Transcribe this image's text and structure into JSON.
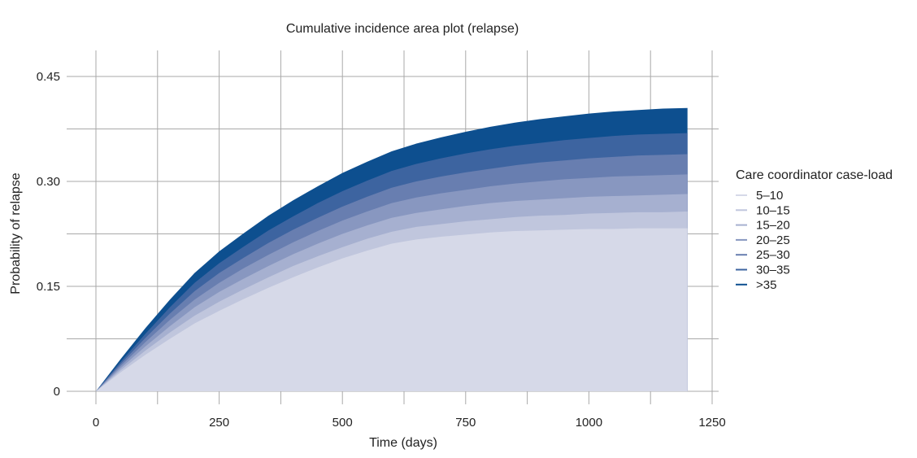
{
  "chart_data": {
    "type": "area",
    "title": "Cumulative incidence area plot (relapse)",
    "xlabel": "Time (days)",
    "ylabel": "Probability of relapse",
    "xlim": [
      0,
      1250
    ],
    "ylim": [
      0,
      0.45
    ],
    "x_ticks": [
      0,
      250,
      500,
      750,
      1000,
      1250
    ],
    "x_tick_labels": [
      "0",
      "250",
      "500",
      "750",
      "1000",
      "1250"
    ],
    "y_ticks": [
      0,
      0.15,
      0.3,
      0.45
    ],
    "y_tick_labels": [
      "0",
      "0.15",
      "0.30",
      "0.45"
    ],
    "grid": true,
    "legend": {
      "title": "Care coordinator case-load",
      "placement": "right"
    },
    "x": [
      0,
      50,
      100,
      150,
      200,
      250,
      300,
      350,
      400,
      450,
      500,
      550,
      600,
      650,
      700,
      750,
      800,
      850,
      900,
      950,
      1000,
      1050,
      1100,
      1150,
      1200
    ],
    "series": [
      {
        "name": "5–10",
        "color": "#d6d9e8",
        "values": [
          0,
          0.027,
          0.052,
          0.075,
          0.097,
          0.115,
          0.132,
          0.148,
          0.163,
          0.177,
          0.19,
          0.201,
          0.211,
          0.217,
          0.221,
          0.224,
          0.227,
          0.229,
          0.23,
          0.231,
          0.232,
          0.232,
          0.233,
          0.233,
          0.233
        ]
      },
      {
        "name": "10–15",
        "color": "#c0c6dd",
        "values": [
          0,
          0.03,
          0.058,
          0.084,
          0.108,
          0.128,
          0.146,
          0.163,
          0.179,
          0.193,
          0.206,
          0.218,
          0.228,
          0.235,
          0.239,
          0.243,
          0.246,
          0.249,
          0.251,
          0.252,
          0.254,
          0.255,
          0.256,
          0.256,
          0.257
        ]
      },
      {
        "name": "15–20",
        "color": "#a6b0d0",
        "values": [
          0,
          0.033,
          0.064,
          0.093,
          0.12,
          0.142,
          0.161,
          0.179,
          0.196,
          0.211,
          0.225,
          0.237,
          0.248,
          0.255,
          0.26,
          0.265,
          0.269,
          0.272,
          0.274,
          0.276,
          0.278,
          0.279,
          0.28,
          0.281,
          0.282
        ]
      },
      {
        "name": "20–25",
        "color": "#8897c0",
        "values": [
          0,
          0.036,
          0.07,
          0.102,
          0.131,
          0.155,
          0.176,
          0.195,
          0.213,
          0.229,
          0.244,
          0.257,
          0.269,
          0.277,
          0.283,
          0.288,
          0.293,
          0.297,
          0.3,
          0.303,
          0.305,
          0.307,
          0.308,
          0.309,
          0.31
        ]
      },
      {
        "name": "25–30",
        "color": "#687eb0",
        "values": [
          0,
          0.039,
          0.076,
          0.111,
          0.143,
          0.169,
          0.191,
          0.212,
          0.231,
          0.248,
          0.264,
          0.278,
          0.291,
          0.3,
          0.307,
          0.313,
          0.318,
          0.323,
          0.327,
          0.33,
          0.333,
          0.335,
          0.337,
          0.338,
          0.339
        ]
      },
      {
        "name": "30–35",
        "color": "#3d64a0",
        "values": [
          0,
          0.042,
          0.082,
          0.12,
          0.155,
          0.183,
          0.207,
          0.23,
          0.25,
          0.269,
          0.286,
          0.301,
          0.315,
          0.325,
          0.333,
          0.34,
          0.346,
          0.351,
          0.355,
          0.359,
          0.362,
          0.365,
          0.367,
          0.368,
          0.369
        ]
      },
      {
        "name": ">35",
        "color": "#0d4f8f",
        "values": [
          0,
          0.046,
          0.09,
          0.131,
          0.169,
          0.2,
          0.226,
          0.251,
          0.273,
          0.293,
          0.312,
          0.328,
          0.343,
          0.354,
          0.363,
          0.371,
          0.378,
          0.384,
          0.389,
          0.393,
          0.397,
          0.4,
          0.402,
          0.404,
          0.405
        ]
      }
    ]
  }
}
